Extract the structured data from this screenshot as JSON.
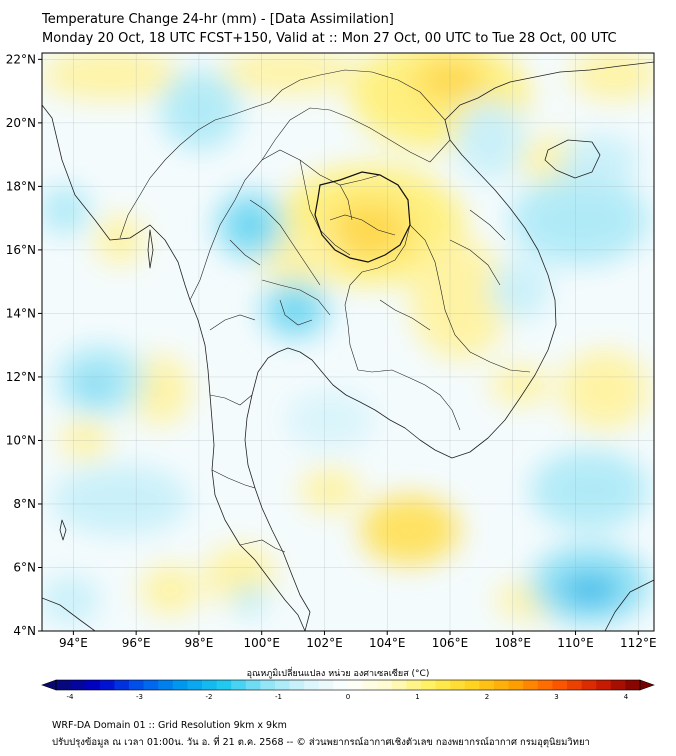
{
  "header": {
    "title": "Temperature Change 24-hr (mm) - [Data Assimilation]",
    "subtitle": "Monday 20 Oct, 18 UTC FCST+150, Valid at :: Mon 27 Oct, 00 UTC to Tue 28 Oct, 00 UTC"
  },
  "map": {
    "lon_range": [
      93,
      112.5
    ],
    "lat_range": [
      4,
      22.2
    ],
    "lon_ticks": [
      "94°E",
      "96°E",
      "98°E",
      "100°E",
      "102°E",
      "104°E",
      "106°E",
      "108°E",
      "110°E",
      "112°E"
    ],
    "lat_ticks": [
      "22°N",
      "20°N",
      "18°N",
      "16°N",
      "14°N",
      "12°N",
      "10°N",
      "8°N",
      "6°N",
      "4°N"
    ],
    "background_color": "#f4fbfd"
  },
  "colorbar": {
    "title": "อุณหภูมิเปลี่ยนแปลง หน่วย องศาเซลเซียส (°C)",
    "tick_labels": [
      "-4",
      "-3",
      "-2",
      "-1",
      "0",
      "1",
      "2",
      "3",
      "4"
    ],
    "colors": [
      "#08086e",
      "#0000cc",
      "#0055ee",
      "#0099f0",
      "#1ec8f0",
      "#8ee4f6",
      "#d8f4fb",
      "#ffffff",
      "#fffacc",
      "#fff05a",
      "#ffd21e",
      "#ffa000",
      "#ff5a00",
      "#d21e00",
      "#780000"
    ]
  },
  "footer": {
    "line1": "WRF-DA Domain 01 :: Grid Resolution 9km x 9km",
    "line2": "ปรับปรุงข้อมูล ณ เวลา 01:00น. วัน อ. ที่ 21 ต.ค. 2568 -- © ส่วนพยากรณ์อากาศเชิงตัวเลข กองพยากรณ์อากาศ กรมอุตุนิยมวิทยา"
  }
}
